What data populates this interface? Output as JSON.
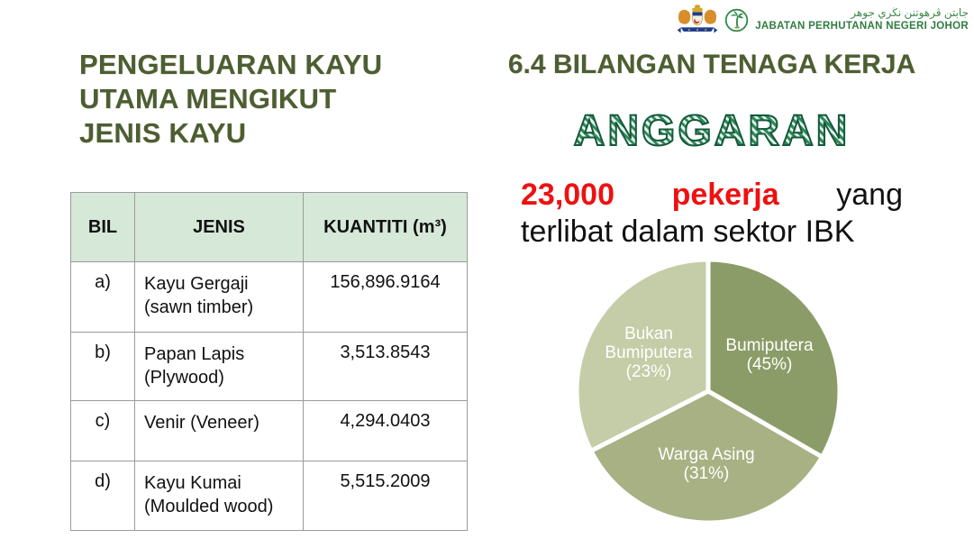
{
  "header": {
    "jawi": "جابتن ڤرهوتنن نڬري جوهر",
    "department": "JABATAN PERHUTANAN NEGERI JOHOR"
  },
  "left": {
    "title": "PENGELUARAN KAYU\nUTAMA MENGIKUT\nJENIS KAYU",
    "table": {
      "columns": [
        "BIL",
        "JENIS",
        "KUANTITI (m³)"
      ],
      "rows": [
        {
          "bil": "a)",
          "jenis": "Kayu Gergaji\n(sawn timber)",
          "kuantiti": "156,896.9164"
        },
        {
          "bil": "b)",
          "jenis": "Papan Lapis\n(Plywood)",
          "kuantiti": "3,513.8543"
        },
        {
          "bil": "c)",
          "jenis": "Venir (Veneer)",
          "kuantiti": "4,294.0403"
        },
        {
          "bil": "d)",
          "jenis": "Kayu Kumai\n(Moulded wood)",
          "kuantiti": "5,515.2009"
        }
      ]
    }
  },
  "right": {
    "section_title": "6.4 BILANGAN TENAGA KERJA",
    "wordart": "ANGGARAN",
    "statement": {
      "words": [
        "23,000",
        "pekerja",
        "yang"
      ],
      "line2": "terlibat dalam sektor IBK"
    }
  },
  "chart_data": {
    "type": "pie",
    "title": "",
    "labels": [
      "Bumiputera",
      "Warga Asing",
      "Bukan Bumiputera"
    ],
    "values": [
      45,
      31,
      23
    ],
    "unit": "%",
    "colors": [
      "#8c9c68",
      "#a7b183",
      "#c4cda7"
    ],
    "legend_position": "none",
    "display_angles": [
      [
        0,
        120
      ],
      [
        120,
        243
      ],
      [
        243,
        360
      ]
    ],
    "label_lines": [
      [
        "Bumiputera",
        "(45%)"
      ],
      [
        "Warga Asing",
        "(31%)"
      ],
      [
        "Bukan",
        "Bumiputera",
        "(23%)"
      ]
    ],
    "label_layout": [
      {
        "x": 68,
        "y": -45
      },
      {
        "x": -2,
        "y": 76
      },
      {
        "x": -66,
        "y": -58
      }
    ]
  },
  "colors": {
    "title_olive": "#4d5e31",
    "emphasis_red": "#ee1111",
    "table_header_mint": "#d6e8d8",
    "brand_green": "#2f7d3e",
    "wordart_green": "#15593c"
  }
}
